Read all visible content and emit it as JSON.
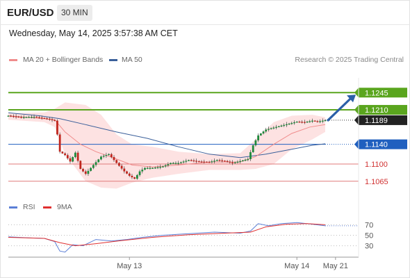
{
  "header": {
    "symbol": "EUR/USD",
    "timeframe": "30 MIN"
  },
  "datetime": "Wednesday, May 14, 2025 3:57:38 AM CET",
  "legend": {
    "ma20": {
      "label": "MA 20 + Bollinger Bands",
      "color": "#f08c8c"
    },
    "ma50": {
      "label": "MA 50",
      "color": "#3a5f9a"
    },
    "rsi": {
      "label": "RSI",
      "color": "#5b7fd6"
    },
    "rsi_ma": {
      "label": "9MA",
      "color": "#e03030"
    }
  },
  "credit": "Research © 2025 Trading Central",
  "chart_data": {
    "type": "line",
    "ylim": [
      1.1035,
      1.1275
    ],
    "current_price": "1.1189",
    "levels": [
      {
        "value": 1.1245,
        "label": "1.1245",
        "kind": "resistance",
        "color": "#5aa51e"
      },
      {
        "value": 1.121,
        "label": "1.1210",
        "kind": "pivot",
        "color": "#5aa51e"
      },
      {
        "value": 1.114,
        "label": "1.1140",
        "kind": "ma50",
        "color": "#1f5fbf"
      },
      {
        "value": 1.11,
        "label": "1.1100",
        "kind": "support",
        "color": "#e07a7a"
      },
      {
        "value": 1.1065,
        "label": "1.1065",
        "kind": "support",
        "color": "#e07a7a"
      }
    ],
    "price_path": [
      {
        "t": 0,
        "v": 1.1198
      },
      {
        "t": 5,
        "v": 1.1195
      },
      {
        "t": 10,
        "v": 1.1196
      },
      {
        "t": 15,
        "v": 1.1192
      },
      {
        "t": 18,
        "v": 1.1188
      },
      {
        "t": 19,
        "v": 1.116
      },
      {
        "t": 20,
        "v": 1.1125
      },
      {
        "t": 22,
        "v": 1.1118
      },
      {
        "t": 24,
        "v": 1.1105
      },
      {
        "t": 26,
        "v": 1.1123
      },
      {
        "t": 28,
        "v": 1.109
      },
      {
        "t": 30,
        "v": 1.108
      },
      {
        "t": 33,
        "v": 1.1098
      },
      {
        "t": 36,
        "v": 1.1115
      },
      {
        "t": 39,
        "v": 1.112
      },
      {
        "t": 42,
        "v": 1.1102
      },
      {
        "t": 45,
        "v": 1.1085
      },
      {
        "t": 47,
        "v": 1.1076
      },
      {
        "t": 49,
        "v": 1.107
      },
      {
        "t": 51,
        "v": 1.1085
      },
      {
        "t": 53,
        "v": 1.1092
      },
      {
        "t": 56,
        "v": 1.1092
      },
      {
        "t": 60,
        "v": 1.1095
      },
      {
        "t": 63,
        "v": 1.1102
      },
      {
        "t": 66,
        "v": 1.1102
      },
      {
        "t": 70,
        "v": 1.1108
      },
      {
        "t": 74,
        "v": 1.1105
      },
      {
        "t": 78,
        "v": 1.1104
      },
      {
        "t": 81,
        "v": 1.1108
      },
      {
        "t": 84,
        "v": 1.1106
      },
      {
        "t": 87,
        "v": 1.1102
      },
      {
        "t": 90,
        "v": 1.1106
      },
      {
        "t": 93,
        "v": 1.111
      },
      {
        "t": 95,
        "v": 1.1138
      },
      {
        "t": 97,
        "v": 1.1158
      },
      {
        "t": 100,
        "v": 1.117
      },
      {
        "t": 103,
        "v": 1.1174
      },
      {
        "t": 106,
        "v": 1.1178
      },
      {
        "t": 109,
        "v": 1.1182
      },
      {
        "t": 112,
        "v": 1.1186
      },
      {
        "t": 115,
        "v": 1.1185
      },
      {
        "t": 118,
        "v": 1.1188
      },
      {
        "t": 120,
        "v": 1.1186
      },
      {
        "t": 123,
        "v": 1.1189
      }
    ],
    "ma20": [
      {
        "t": 0,
        "v": 1.1198
      },
      {
        "t": 18,
        "v": 1.119
      },
      {
        "t": 22,
        "v": 1.1165
      },
      {
        "t": 28,
        "v": 1.114
      },
      {
        "t": 34,
        "v": 1.1125
      },
      {
        "t": 42,
        "v": 1.111
      },
      {
        "t": 48,
        "v": 1.1098
      },
      {
        "t": 56,
        "v": 1.1094
      },
      {
        "t": 66,
        "v": 1.1098
      },
      {
        "t": 78,
        "v": 1.1104
      },
      {
        "t": 90,
        "v": 1.1104
      },
      {
        "t": 96,
        "v": 1.1115
      },
      {
        "t": 103,
        "v": 1.114
      },
      {
        "t": 110,
        "v": 1.1162
      },
      {
        "t": 117,
        "v": 1.1175
      },
      {
        "t": 123,
        "v": 1.118
      }
    ],
    "ma50": [
      {
        "t": 0,
        "v": 1.1204
      },
      {
        "t": 12,
        "v": 1.1198
      },
      {
        "t": 20,
        "v": 1.1192
      },
      {
        "t": 30,
        "v": 1.118
      },
      {
        "t": 42,
        "v": 1.1165
      },
      {
        "t": 54,
        "v": 1.1152
      },
      {
        "t": 66,
        "v": 1.1135
      },
      {
        "t": 78,
        "v": 1.112
      },
      {
        "t": 90,
        "v": 1.1113
      },
      {
        "t": 100,
        "v": 1.112
      },
      {
        "t": 110,
        "v": 1.113
      },
      {
        "t": 118,
        "v": 1.1138
      },
      {
        "t": 123,
        "v": 1.1141
      }
    ],
    "boll_upper": [
      {
        "t": 0,
        "v": 1.1203
      },
      {
        "t": 14,
        "v": 1.1205
      },
      {
        "t": 18,
        "v": 1.1212
      },
      {
        "t": 22,
        "v": 1.1225
      },
      {
        "t": 30,
        "v": 1.122
      },
      {
        "t": 36,
        "v": 1.12
      },
      {
        "t": 42,
        "v": 1.116
      },
      {
        "t": 48,
        "v": 1.114
      },
      {
        "t": 56,
        "v": 1.1135
      },
      {
        "t": 66,
        "v": 1.1125
      },
      {
        "t": 78,
        "v": 1.112
      },
      {
        "t": 90,
        "v": 1.1122
      },
      {
        "t": 96,
        "v": 1.115
      },
      {
        "t": 103,
        "v": 1.1185
      },
      {
        "t": 110,
        "v": 1.1198
      },
      {
        "t": 118,
        "v": 1.12
      },
      {
        "t": 123,
        "v": 1.1195
      }
    ],
    "boll_lower": [
      {
        "t": 0,
        "v": 1.119
      },
      {
        "t": 14,
        "v": 1.1185
      },
      {
        "t": 18,
        "v": 1.1175
      },
      {
        "t": 22,
        "v": 1.112
      },
      {
        "t": 30,
        "v": 1.1065
      },
      {
        "t": 36,
        "v": 1.1052
      },
      {
        "t": 42,
        "v": 1.105
      },
      {
        "t": 48,
        "v": 1.1062
      },
      {
        "t": 56,
        "v": 1.1072
      },
      {
        "t": 66,
        "v": 1.108
      },
      {
        "t": 78,
        "v": 1.1088
      },
      {
        "t": 90,
        "v": 1.1088
      },
      {
        "t": 96,
        "v": 1.109
      },
      {
        "t": 103,
        "v": 1.11
      },
      {
        "t": 110,
        "v": 1.113
      },
      {
        "t": 118,
        "v": 1.115
      },
      {
        "t": 123,
        "v": 1.1165
      }
    ],
    "projection": {
      "from": 1.1189,
      "to": 1.1245
    },
    "rsi": {
      "ylim": [
        15,
        85
      ],
      "ticks": [
        "70",
        "50",
        "30"
      ],
      "tick_values": [
        70,
        50,
        30
      ],
      "rsi": [
        {
          "t": 0,
          "v": 47
        },
        {
          "t": 8,
          "v": 45
        },
        {
          "t": 14,
          "v": 44
        },
        {
          "t": 18,
          "v": 38
        },
        {
          "t": 20,
          "v": 20
        },
        {
          "t": 22,
          "v": 18
        },
        {
          "t": 25,
          "v": 32
        },
        {
          "t": 29,
          "v": 30
        },
        {
          "t": 34,
          "v": 42
        },
        {
          "t": 40,
          "v": 39
        },
        {
          "t": 46,
          "v": 42
        },
        {
          "t": 52,
          "v": 46
        },
        {
          "t": 60,
          "v": 50
        },
        {
          "t": 70,
          "v": 53
        },
        {
          "t": 80,
          "v": 56
        },
        {
          "t": 90,
          "v": 54
        },
        {
          "t": 94,
          "v": 58
        },
        {
          "t": 97,
          "v": 72
        },
        {
          "t": 101,
          "v": 68
        },
        {
          "t": 106,
          "v": 72
        },
        {
          "t": 112,
          "v": 74
        },
        {
          "t": 118,
          "v": 71
        },
        {
          "t": 123,
          "v": 68
        }
      ],
      "rsi_ma": [
        {
          "t": 0,
          "v": 46
        },
        {
          "t": 14,
          "v": 44
        },
        {
          "t": 20,
          "v": 36
        },
        {
          "t": 26,
          "v": 30
        },
        {
          "t": 34,
          "v": 34
        },
        {
          "t": 44,
          "v": 40
        },
        {
          "t": 56,
          "v": 46
        },
        {
          "t": 70,
          "v": 51
        },
        {
          "t": 84,
          "v": 54
        },
        {
          "t": 94,
          "v": 56
        },
        {
          "t": 100,
          "v": 66
        },
        {
          "t": 108,
          "v": 71
        },
        {
          "t": 116,
          "v": 72
        },
        {
          "t": 123,
          "v": 70
        }
      ]
    },
    "x_labels": [
      "May 13",
      "May 14",
      "May 21"
    ],
    "x_label_pos": [
      47,
      112,
      127
    ]
  }
}
